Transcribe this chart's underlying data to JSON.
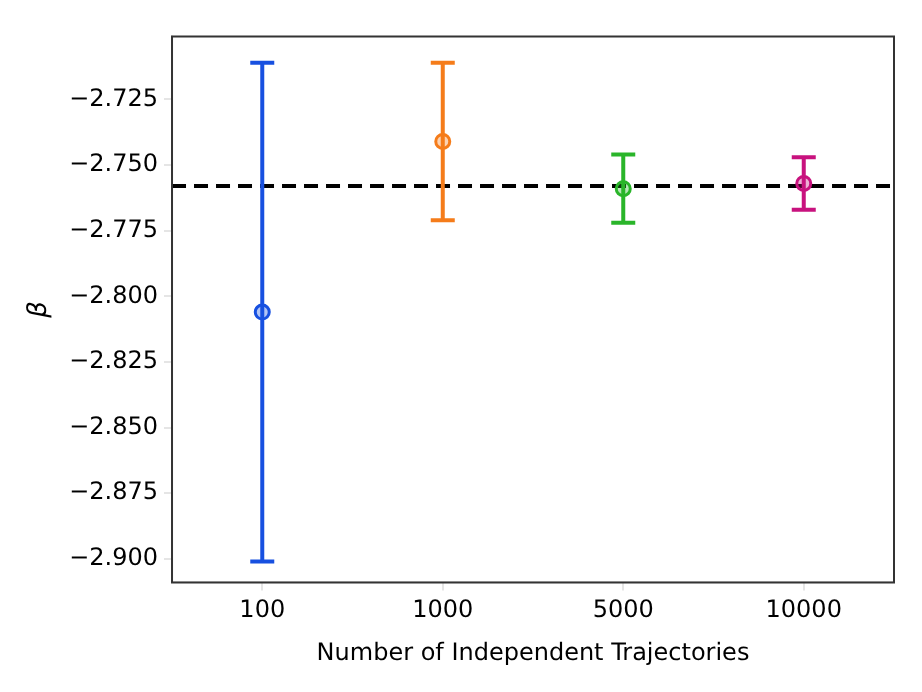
{
  "chart_data": {
    "type": "scatter",
    "xlabel": "Number of Independent Trajectories",
    "ylabel": "β",
    "categories": [
      "100",
      "1000",
      "5000",
      "10000"
    ],
    "values": [
      -2.806,
      -2.741,
      -2.759,
      -2.757
    ],
    "errors": [
      0.095,
      0.03,
      0.013,
      0.01
    ],
    "colors": [
      "#1750e0",
      "#f57c1a",
      "#2ab52a",
      "#c8127e"
    ],
    "marker": "circle",
    "ylim": [
      -2.909,
      -2.701
    ],
    "yticks": [
      {
        "value": -2.725,
        "label": "−2.725"
      },
      {
        "value": -2.75,
        "label": "−2.750"
      },
      {
        "value": -2.775,
        "label": "−2.775"
      },
      {
        "value": -2.8,
        "label": "−2.800"
      },
      {
        "value": -2.825,
        "label": "−2.825"
      },
      {
        "value": -2.85,
        "label": "−2.850"
      },
      {
        "value": -2.875,
        "label": "−2.875"
      },
      {
        "value": -2.9,
        "label": "−2.900"
      }
    ],
    "ref_lines": [
      {
        "axis": "y",
        "value": -2.758,
        "color": "#000000",
        "line_style": "dashed"
      }
    ],
    "grid": false,
    "legend": false
  }
}
